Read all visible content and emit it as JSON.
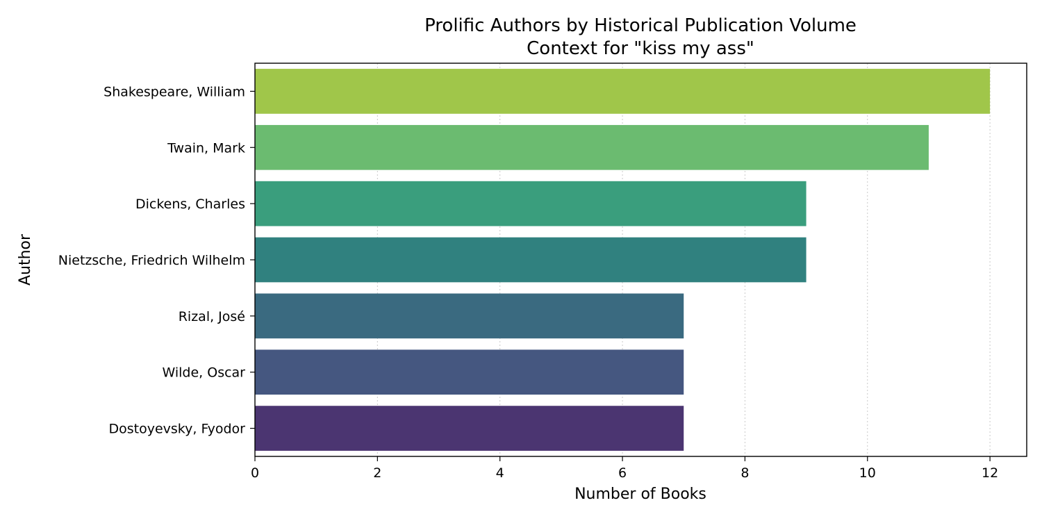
{
  "chart_data": {
    "type": "bar",
    "orientation": "horizontal",
    "title": "Prolific Authors by Historical Publication Volume",
    "subtitle": "Context for \"kiss my ass\"",
    "xlabel": "Number of Books",
    "ylabel": "Author",
    "xlim": [
      0,
      12.6
    ],
    "xticks": [
      0,
      2,
      4,
      6,
      8,
      10,
      12
    ],
    "grid": "vertical dotted",
    "categories": [
      "Shakespeare, William",
      "Twain, Mark",
      "Dickens, Charles",
      "Nietzsche, Friedrich Wilhelm",
      "Rizal, José",
      "Wilde, Oscar",
      "Dostoyevsky, Fyodor"
    ],
    "values": [
      12,
      11,
      9,
      9,
      7,
      7,
      7
    ],
    "colors": [
      "#a0c64a",
      "#6bbb70",
      "#3a9e7d",
      "#30817f",
      "#3a6a80",
      "#455780",
      "#4b3571"
    ]
  }
}
